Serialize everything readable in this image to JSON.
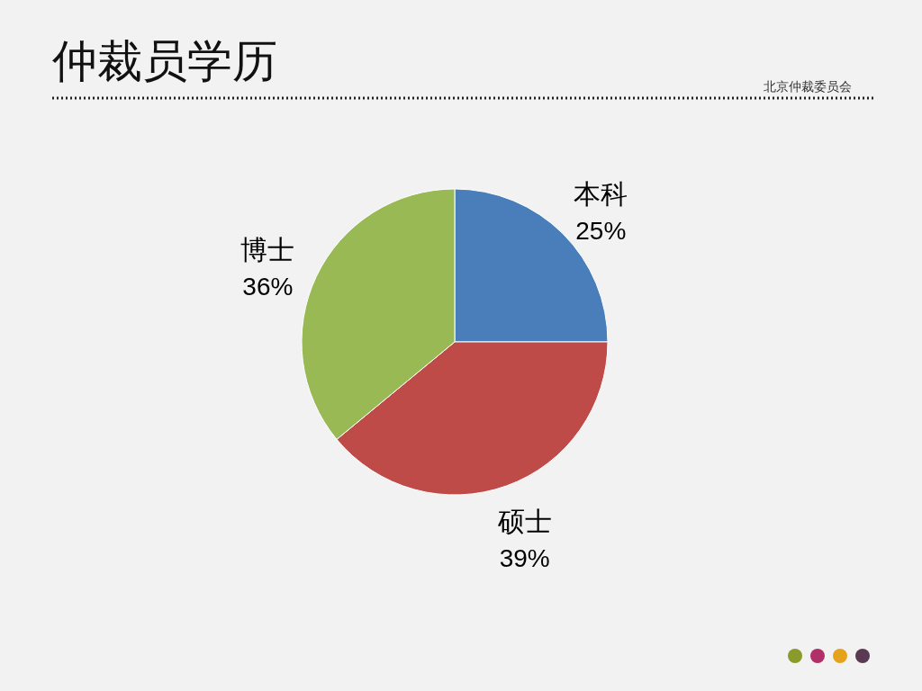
{
  "chart_data": {
    "type": "pie",
    "title": "仲裁员学历",
    "subtitle": "北京仲裁委员会",
    "categories": [
      "本科",
      "硕士",
      "博士"
    ],
    "values": [
      25,
      39,
      36
    ],
    "value_labels": [
      "25%",
      "39%",
      "36%"
    ],
    "colors": [
      "#4a7ebb",
      "#be4b48",
      "#98b954"
    ]
  }
}
